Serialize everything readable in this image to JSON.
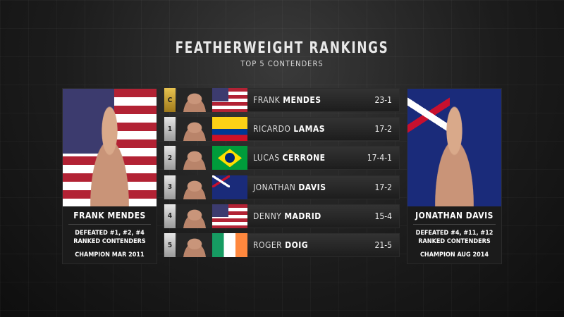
{
  "header": {
    "title": "FEATHERWEIGHT RANKINGS",
    "subtitle": "TOP 5 CONTENDERS"
  },
  "left_panel": {
    "name": "FRANK MENDES",
    "flag": "usa",
    "info_line1": "DEFEATED #1, #2, #4",
    "info_line2": "RANKED CONTENDERS",
    "champion": "CHAMPION MAR 2011"
  },
  "right_panel": {
    "name": "JONATHAN DAVIS",
    "flag": "australia",
    "info_line1": "DEFEATED #4, #11, #12",
    "info_line2": "RANKED CONTENDERS",
    "champion": "CHAMPION AUG 2014"
  },
  "rankings": [
    {
      "rank": "C",
      "first": "FRANK",
      "last": "MENDES",
      "record": "23-1",
      "flag": "usa"
    },
    {
      "rank": "1",
      "first": "RICARDO",
      "last": "LAMAS",
      "record": "17-2",
      "flag": "colombia"
    },
    {
      "rank": "2",
      "first": "LUCAS",
      "last": "CERRONE",
      "record": "17-4-1",
      "flag": "brazil"
    },
    {
      "rank": "3",
      "first": "JONATHAN",
      "last": "DAVIS",
      "record": "17-2",
      "flag": "australia"
    },
    {
      "rank": "4",
      "first": "DENNY",
      "last": "MADRID",
      "record": "15-4",
      "flag": "usa"
    },
    {
      "rank": "5",
      "first": "ROGER",
      "last": "DOIG",
      "record": "21-5",
      "flag": "ireland"
    }
  ],
  "colors": {
    "champion_badge": "#d4a93a",
    "rank_badge": "#cfcfcf"
  }
}
